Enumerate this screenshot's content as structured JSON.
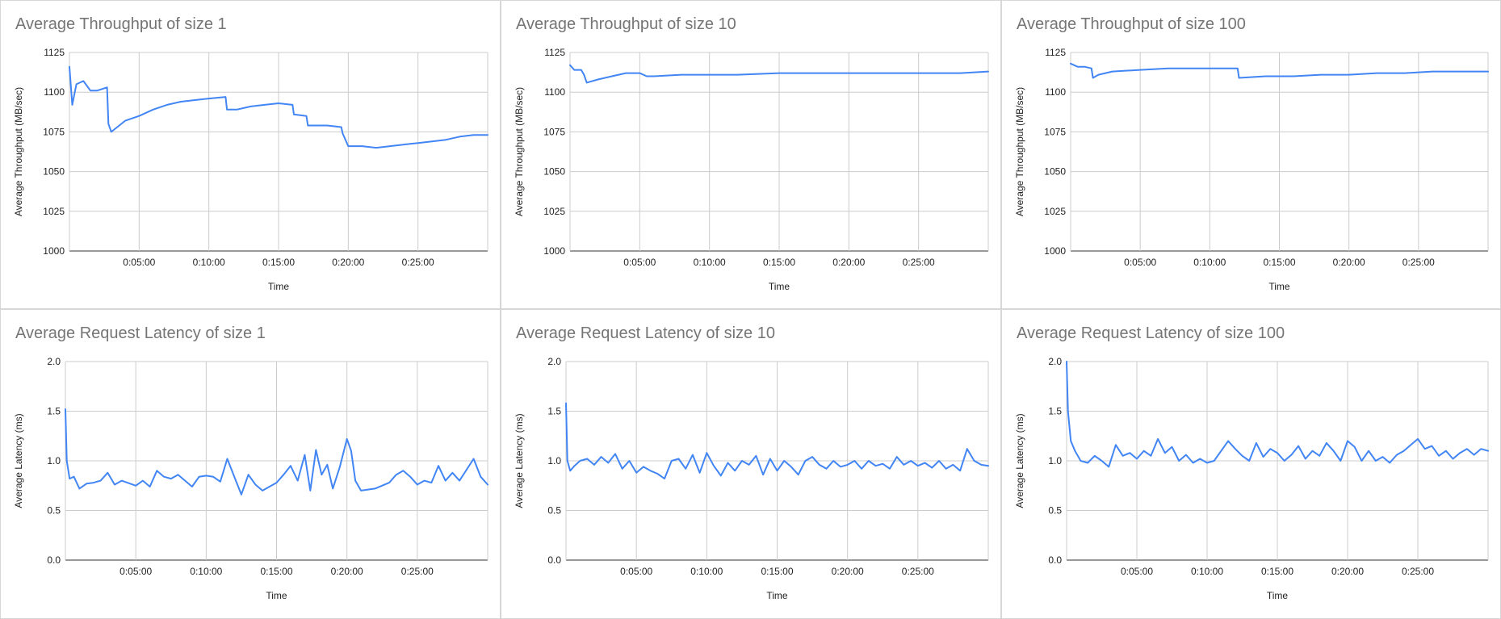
{
  "charts": [
    {
      "id": "tp1",
      "title": "Average Throughput of size 1",
      "xlabel": "Time",
      "ylabel": "Average Throughput (MB/sec)",
      "color": "#4285f4",
      "chart_data": {
        "type": "line",
        "title": "Average Throughput of size 1",
        "xlabel": "Time",
        "ylabel": "Average Throughput (MB/sec)",
        "ylim": [
          1000,
          1125
        ],
        "yticks": [
          "1000",
          "1025",
          "1050",
          "1075",
          "1100",
          "1125"
        ],
        "xlim_minutes": [
          0,
          30
        ],
        "xticks": [
          "0:05:00",
          "0:10:00",
          "0:15:00",
          "0:20:00",
          "0:25:00"
        ],
        "grid": true,
        "x_minutes": [
          0,
          0.2,
          0.5,
          1,
          1.5,
          2,
          2.7,
          2.8,
          3,
          4,
          5,
          6,
          7,
          8,
          9,
          10,
          11.2,
          11.3,
          12,
          13,
          14,
          15,
          16,
          16.1,
          17,
          17.1,
          18.5,
          19.5,
          19.6,
          20,
          21,
          22,
          23,
          24,
          25,
          26,
          27,
          28,
          29,
          30
        ],
        "y": [
          1116,
          1092,
          1105,
          1107,
          1101,
          1101,
          1103,
          1080,
          1075,
          1082,
          1085,
          1089,
          1092,
          1094,
          1095,
          1096,
          1097,
          1089,
          1089,
          1091,
          1092,
          1093,
          1092,
          1086,
          1085,
          1079,
          1079,
          1078,
          1074,
          1066,
          1066,
          1065,
          1066,
          1067,
          1068,
          1069,
          1070,
          1072,
          1073,
          1073
        ]
      }
    },
    {
      "id": "tp10",
      "title": "Average Throughput of size 10",
      "xlabel": "Time",
      "ylabel": "Average Throughput (MB/sec)",
      "color": "#4285f4",
      "chart_data": {
        "type": "line",
        "title": "Average Throughput of size 10",
        "xlabel": "Time",
        "ylabel": "Average Throughput (MB/sec)",
        "ylim": [
          1000,
          1125
        ],
        "yticks": [
          "1000",
          "1025",
          "1050",
          "1075",
          "1100",
          "1125"
        ],
        "xlim_minutes": [
          0,
          30
        ],
        "xticks": [
          "0:05:00",
          "0:10:00",
          "0:15:00",
          "0:20:00",
          "0:25:00"
        ],
        "grid": true,
        "x_minutes": [
          0,
          0.3,
          0.8,
          1,
          1.2,
          2,
          3,
          4,
          5,
          5.5,
          6,
          8,
          10,
          12,
          15,
          18,
          20,
          22,
          25,
          28,
          30
        ],
        "y": [
          1117,
          1114,
          1114,
          1111,
          1106,
          1108,
          1110,
          1112,
          1112,
          1110,
          1110,
          1111,
          1111,
          1111,
          1112,
          1112,
          1112,
          1112,
          1112,
          1112,
          1113
        ]
      }
    },
    {
      "id": "tp100",
      "title": "Average Throughput of size 100",
      "xlabel": "Time",
      "ylabel": "Average Throughput (MB/sec)",
      "color": "#4285f4",
      "chart_data": {
        "type": "line",
        "title": "Average Throughput of size 100",
        "xlabel": "Time",
        "ylabel": "Average Throughput (MB/sec)",
        "ylim": [
          1000,
          1125
        ],
        "yticks": [
          "1000",
          "1025",
          "1050",
          "1075",
          "1100",
          "1125"
        ],
        "xlim_minutes": [
          0,
          30
        ],
        "xticks": [
          "0:05:00",
          "0:10:00",
          "0:15:00",
          "0:20:00",
          "0:25:00"
        ],
        "grid": true,
        "x_minutes": [
          0,
          0.5,
          1,
          1.5,
          1.6,
          2,
          3,
          5,
          7,
          9,
          11,
          12,
          12.1,
          14,
          16,
          18,
          20,
          22,
          24,
          26,
          28,
          30
        ],
        "y": [
          1118,
          1116,
          1116,
          1115,
          1109,
          1111,
          1113,
          1114,
          1115,
          1115,
          1115,
          1115,
          1109,
          1110,
          1110,
          1111,
          1111,
          1112,
          1112,
          1113,
          1113,
          1113
        ]
      }
    },
    {
      "id": "lat1",
      "title": "Average Request Latency of size 1",
      "xlabel": "Time",
      "ylabel": "Average Latency (ms)",
      "color": "#4285f4",
      "chart_data": {
        "type": "line",
        "title": "Average Request Latency of size 1",
        "xlabel": "Time",
        "ylabel": "Average Latency (ms)",
        "ylim": [
          0,
          2
        ],
        "yticks": [
          "0.0",
          "0.5",
          "1.0",
          "1.5",
          "2.0"
        ],
        "xlim_minutes": [
          0,
          30
        ],
        "xticks": [
          "0:05:00",
          "0:10:00",
          "0:15:00",
          "0:20:00",
          "0:25:00"
        ],
        "grid": true,
        "x_minutes": [
          0,
          0.1,
          0.3,
          0.6,
          1,
          1.5,
          2,
          2.5,
          3,
          3.5,
          4,
          5,
          5.5,
          6,
          6.5,
          7,
          7.5,
          8,
          9,
          9.5,
          10,
          10.5,
          11,
          11.5,
          12,
          12.5,
          13,
          13.5,
          14,
          15,
          15.5,
          16,
          16.5,
          17,
          17.4,
          17.8,
          18.2,
          18.6,
          19,
          19.5,
          20,
          20.3,
          20.6,
          21,
          22,
          23,
          23.5,
          24,
          24.5,
          25,
          25.5,
          26,
          26.5,
          27,
          27.5,
          28,
          29,
          29.5,
          30
        ],
        "y": [
          1.52,
          1.0,
          0.82,
          0.84,
          0.72,
          0.77,
          0.78,
          0.8,
          0.88,
          0.76,
          0.8,
          0.75,
          0.8,
          0.74,
          0.9,
          0.84,
          0.82,
          0.86,
          0.74,
          0.84,
          0.85,
          0.84,
          0.79,
          1.02,
          0.84,
          0.66,
          0.86,
          0.76,
          0.7,
          0.78,
          0.86,
          0.95,
          0.8,
          1.06,
          0.7,
          1.11,
          0.86,
          0.96,
          0.72,
          0.94,
          1.22,
          1.1,
          0.8,
          0.7,
          0.72,
          0.78,
          0.86,
          0.9,
          0.84,
          0.76,
          0.8,
          0.78,
          0.95,
          0.8,
          0.88,
          0.8,
          1.02,
          0.84,
          0.76
        ]
      }
    },
    {
      "id": "lat10",
      "title": "Average Request Latency of size 10",
      "xlabel": "Time",
      "ylabel": "Average Latency (ms)",
      "color": "#4285f4",
      "chart_data": {
        "type": "line",
        "title": "Average Request Latency of size 10",
        "xlabel": "Time",
        "ylabel": "Average Latency (ms)",
        "ylim": [
          0,
          2
        ],
        "yticks": [
          "0.0",
          "0.5",
          "1.0",
          "1.5",
          "2.0"
        ],
        "xlim_minutes": [
          0,
          30
        ],
        "xticks": [
          "0:05:00",
          "0:10:00",
          "0:15:00",
          "0:20:00",
          "0:25:00"
        ],
        "grid": true,
        "x_minutes": [
          0,
          0.1,
          0.3,
          0.6,
          1,
          1.5,
          2,
          2.5,
          3,
          3.5,
          4,
          4.5,
          5,
          5.5,
          6,
          6.5,
          7,
          7.5,
          8,
          8.5,
          9,
          9.5,
          10,
          10.5,
          11,
          11.5,
          12,
          12.5,
          13,
          13.5,
          14,
          14.5,
          15,
          15.5,
          16,
          16.5,
          17,
          17.5,
          18,
          18.5,
          19,
          19.5,
          20,
          20.5,
          21,
          21.5,
          22,
          22.5,
          23,
          23.5,
          24,
          24.5,
          25,
          25.5,
          26,
          26.5,
          27,
          27.5,
          28,
          28.5,
          29,
          29.5,
          30
        ],
        "y": [
          1.58,
          1.0,
          0.9,
          0.95,
          1.0,
          1.02,
          0.96,
          1.04,
          0.98,
          1.07,
          0.92,
          1.0,
          0.88,
          0.94,
          0.9,
          0.87,
          0.82,
          1.0,
          1.02,
          0.92,
          1.06,
          0.88,
          1.08,
          0.95,
          0.85,
          0.98,
          0.9,
          1.0,
          0.96,
          1.05,
          0.86,
          1.02,
          0.9,
          1.0,
          0.94,
          0.86,
          1.0,
          1.04,
          0.96,
          0.92,
          1.0,
          0.94,
          0.96,
          1.0,
          0.92,
          1.0,
          0.95,
          0.97,
          0.92,
          1.04,
          0.96,
          1.0,
          0.95,
          0.98,
          0.93,
          1.0,
          0.92,
          0.96,
          0.9,
          1.12,
          1.0,
          0.96,
          0.95
        ]
      }
    },
    {
      "id": "lat100",
      "title": "Average Request Latency of size 100",
      "xlabel": "Time",
      "ylabel": "Average Latency (ms)",
      "color": "#4285f4",
      "chart_data": {
        "type": "line",
        "title": "Average Request Latency of size 100",
        "xlabel": "Time",
        "ylabel": "Average Latency (ms)",
        "ylim": [
          0,
          2
        ],
        "yticks": [
          "0.0",
          "0.5",
          "1.0",
          "1.5",
          "2.0"
        ],
        "xlim_minutes": [
          0,
          30
        ],
        "xticks": [
          "0:05:00",
          "0:10:00",
          "0:15:00",
          "0:20:00",
          "0:25:00"
        ],
        "grid": true,
        "x_minutes": [
          0,
          0.1,
          0.3,
          0.6,
          1,
          1.5,
          2,
          2.5,
          3,
          3.5,
          4,
          4.5,
          5,
          5.5,
          6,
          6.5,
          7,
          7.5,
          8,
          8.5,
          9,
          9.5,
          10,
          10.5,
          11,
          11.5,
          12,
          12.5,
          13,
          13.5,
          14,
          14.5,
          15,
          15.5,
          16,
          16.5,
          17,
          17.5,
          18,
          18.5,
          19,
          19.5,
          20,
          20.5,
          21,
          21.5,
          22,
          22.5,
          23,
          23.5,
          24,
          24.5,
          25,
          25.5,
          26,
          26.5,
          27,
          27.5,
          28,
          28.5,
          29,
          29.5,
          30
        ],
        "y": [
          2.0,
          1.5,
          1.2,
          1.1,
          1.0,
          0.98,
          1.05,
          1.0,
          0.94,
          1.16,
          1.05,
          1.08,
          1.02,
          1.1,
          1.05,
          1.22,
          1.08,
          1.14,
          1.0,
          1.06,
          0.98,
          1.02,
          0.98,
          1.0,
          1.1,
          1.2,
          1.12,
          1.05,
          1.0,
          1.18,
          1.04,
          1.12,
          1.08,
          1.0,
          1.06,
          1.15,
          1.02,
          1.1,
          1.05,
          1.18,
          1.1,
          1.0,
          1.2,
          1.14,
          1.0,
          1.1,
          1.0,
          1.04,
          0.98,
          1.06,
          1.1,
          1.16,
          1.22,
          1.12,
          1.15,
          1.05,
          1.1,
          1.02,
          1.08,
          1.12,
          1.06,
          1.12,
          1.1
        ]
      }
    }
  ]
}
